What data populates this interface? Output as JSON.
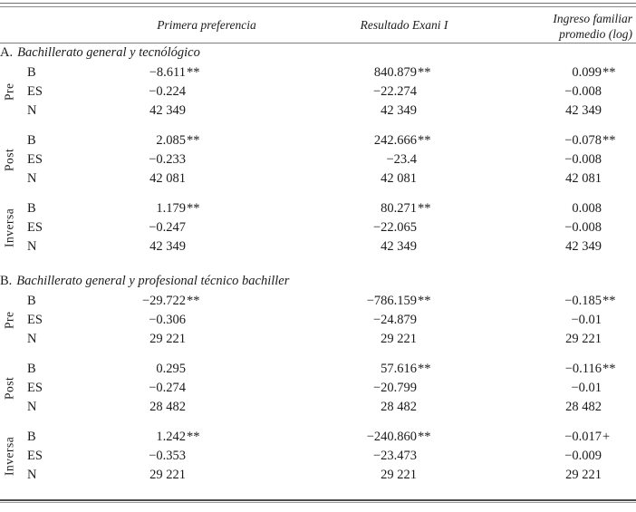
{
  "header": {
    "col1": "Primera preferencia",
    "col2": "Resultado Exani I",
    "col3_line1": "Ingreso familiar",
    "col3_line2": "promedio (log)"
  },
  "sections": [
    {
      "prefix": "A.",
      "title": "Bachillerato general y tecnólógico",
      "groups": [
        {
          "name": "Pre",
          "rows": [
            {
              "label": "B",
              "v1": "−8.611",
              "s1": "**",
              "v2": "840.879",
              "s2": "**",
              "v3": "0.099",
              "s3": "**"
            },
            {
              "label": "ES",
              "v1": "−0.224",
              "s1": "",
              "v2": "−22.274",
              "s2": "",
              "v3": "−0.008",
              "s3": ""
            },
            {
              "label": "N",
              "v1": "42 349",
              "s1": "",
              "v2": "42 349",
              "s2": "",
              "v3": "42 349",
              "s3": ""
            }
          ]
        },
        {
          "name": "Post",
          "rows": [
            {
              "label": "B",
              "v1": "2.085",
              "s1": "**",
              "v2": "242.666",
              "s2": "**",
              "v3": "−0.078",
              "s3": "**"
            },
            {
              "label": "ES",
              "v1": "−0.233",
              "s1": "",
              "v2": "−23.4",
              "s2": "",
              "v3": "−0.008",
              "s3": ""
            },
            {
              "label": "N",
              "v1": "42 081",
              "s1": "",
              "v2": "42 081",
              "s2": "",
              "v3": "42 081",
              "s3": ""
            }
          ]
        },
        {
          "name": "Inversa",
          "rows": [
            {
              "label": "B",
              "v1": "1.179",
              "s1": "**",
              "v2": "80.271",
              "s2": "**",
              "v3": "0.008",
              "s3": ""
            },
            {
              "label": "ES",
              "v1": "−0.247",
              "s1": "",
              "v2": "−22.065",
              "s2": "",
              "v3": "−0.008",
              "s3": ""
            },
            {
              "label": "N",
              "v1": "42 349",
              "s1": "",
              "v2": "42 349",
              "s2": "",
              "v3": "42 349",
              "s3": ""
            }
          ]
        }
      ]
    },
    {
      "prefix": "B.",
      "title": "Bachillerato general y profesional técnico bachiller",
      "groups": [
        {
          "name": "Pre",
          "rows": [
            {
              "label": "B",
              "v1": "−29.722",
              "s1": "**",
              "v2": "−786.159",
              "s2": "**",
              "v3": "−0.185",
              "s3": "**"
            },
            {
              "label": "ES",
              "v1": "−0.306",
              "s1": "",
              "v2": "−24.879",
              "s2": "",
              "v3": "−0.01",
              "s3": ""
            },
            {
              "label": "N",
              "v1": "29 221",
              "s1": "",
              "v2": "29 221",
              "s2": "",
              "v3": "29 221",
              "s3": ""
            }
          ]
        },
        {
          "name": "Post",
          "rows": [
            {
              "label": "B",
              "v1": "0.295",
              "s1": "",
              "v2": "57.616",
              "s2": "**",
              "v3": "−0.116",
              "s3": "**"
            },
            {
              "label": "ES",
              "v1": "−0.274",
              "s1": "",
              "v2": "−20.799",
              "s2": "",
              "v3": "−0.01",
              "s3": ""
            },
            {
              "label": "N",
              "v1": "28 482",
              "s1": "",
              "v2": "28 482",
              "s2": "",
              "v3": "28 482",
              "s3": ""
            }
          ]
        },
        {
          "name": "Inversa",
          "rows": [
            {
              "label": "B",
              "v1": "1.242",
              "s1": "**",
              "v2": "−240.860",
              "s2": "**",
              "v3": "−0.017",
              "s3": "+"
            },
            {
              "label": "ES",
              "v1": "−0.353",
              "s1": "",
              "v2": "−23.473",
              "s2": "",
              "v3": "−0.009",
              "s3": ""
            },
            {
              "label": "N",
              "v1": "29 221",
              "s1": "",
              "v2": "29 221",
              "s2": "",
              "v3": "29 221",
              "s3": ""
            }
          ]
        }
      ]
    }
  ]
}
